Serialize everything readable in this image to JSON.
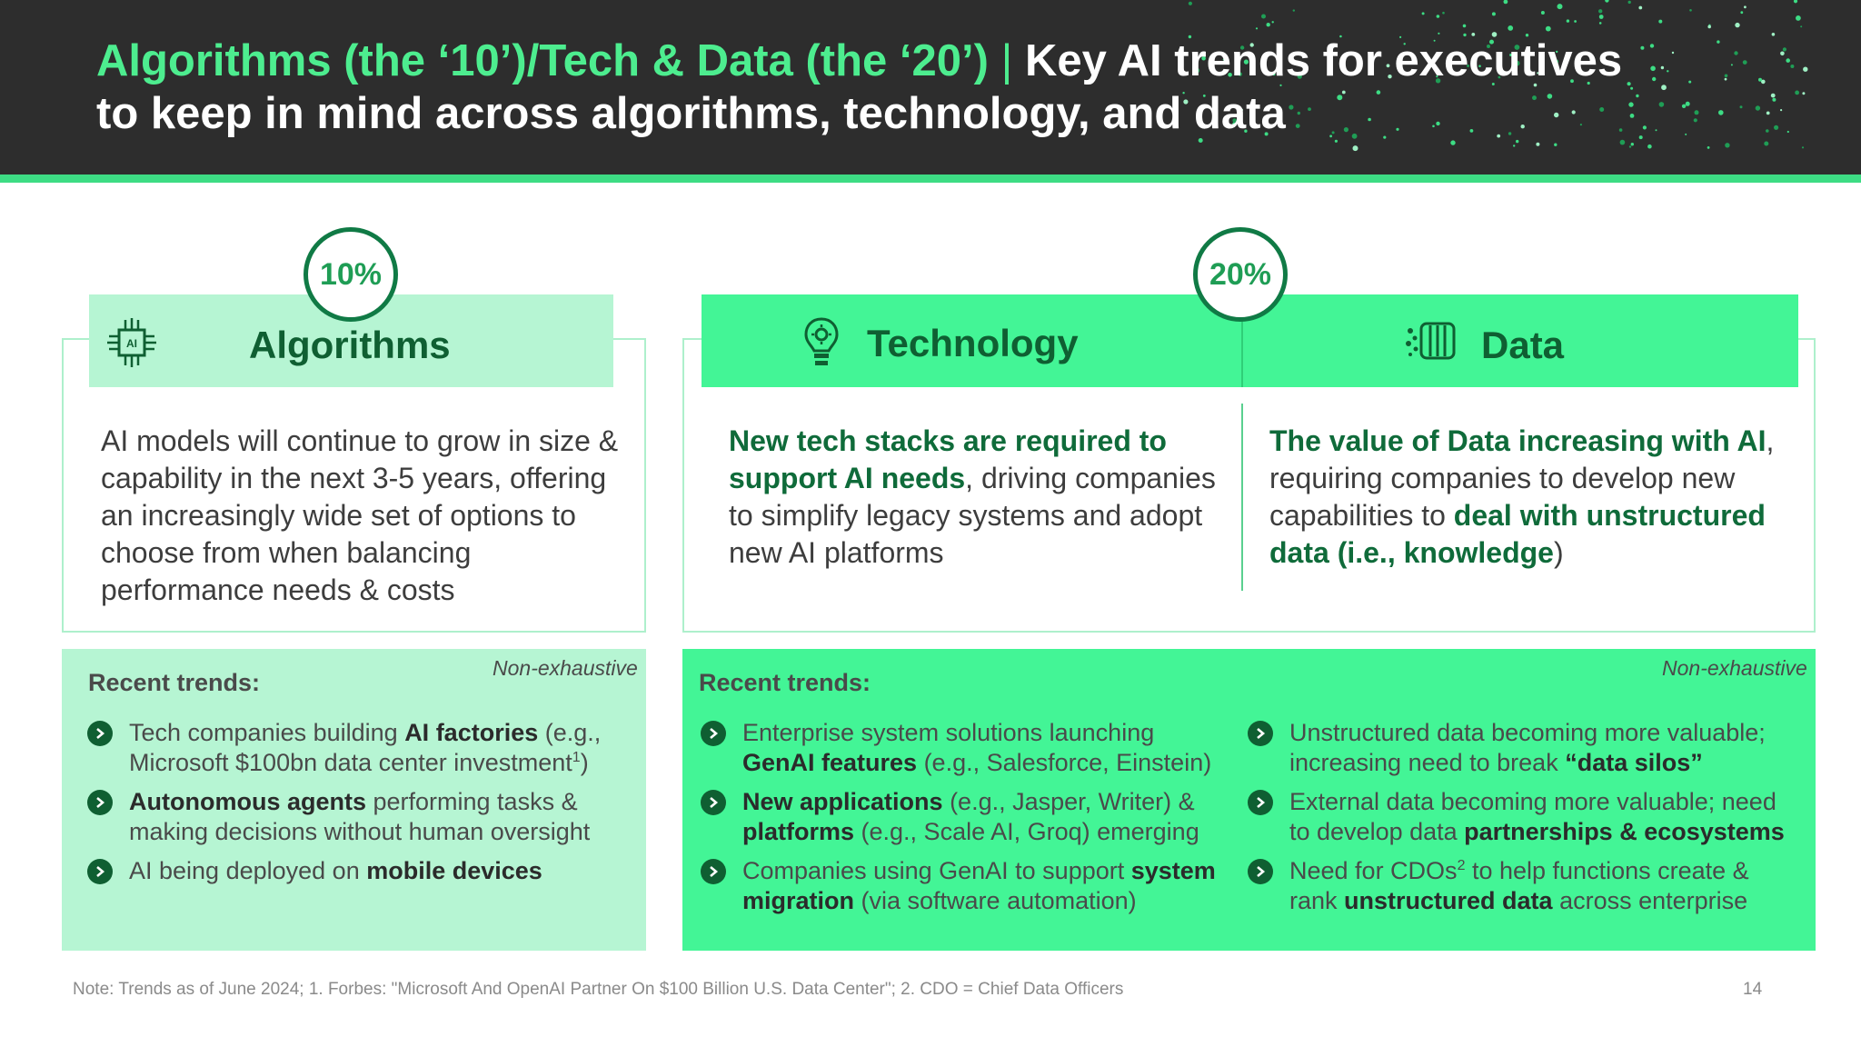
{
  "title": {
    "green_part": "Algorithms (the ‘10’)/Tech & Data (the ‘20’)",
    "separator": "|",
    "white_line1": "Key AI trends for executives",
    "white_line2": "to keep in mind across algorithms, technology, and data"
  },
  "badges": {
    "left": "10%",
    "right": "20%"
  },
  "algorithms": {
    "title": "Algorithms",
    "icon": "ai-chip-icon",
    "icon_text": "AI",
    "description": "AI models will continue to grow in size & capability in the next 3-5 years, offering an increasingly wide set of options to choose from when balancing performance needs & costs"
  },
  "technology": {
    "title": "Technology",
    "icon": "lightbulb-gear-icon",
    "desc_bold": "New tech stacks are required to support AI needs",
    "desc_rest": ", driving companies to simplify legacy systems and adopt new AI platforms"
  },
  "data": {
    "title": "Data",
    "icon": "data-stream-icon",
    "desc_bold1": "The value of Data increasing with AI",
    "desc_mid": ", requiring companies to develop new capabilities to ",
    "desc_bold2": "deal with unstructured data (i.e., knowledge",
    "desc_end": ")"
  },
  "trends_left": {
    "heading": "Recent trends:",
    "note": "Non-exhaustive",
    "items": [
      {
        "a": "Tech companies building ",
        "b": "AI factories",
        "c": " (e.g., Microsoft $100bn data center investment",
        "sup": "1",
        "d": ")"
      },
      {
        "a": "",
        "b": "Autonomous agents",
        "c": " performing tasks & making decisions without human oversight"
      },
      {
        "a": "AI being deployed on ",
        "b": "mobile devices",
        "c": ""
      }
    ]
  },
  "trends_right": {
    "heading": "Recent trends:",
    "note": "Non-exhaustive",
    "tech_items": [
      {
        "a": "Enterprise system solutions launching ",
        "b": "GenAI features",
        "c": " (e.g., Salesforce, Einstein)"
      },
      {
        "a": "",
        "b": "New applications",
        "c": " (e.g., Jasper, Writer) & ",
        "b2": "platforms",
        "c2": " (e.g., Scale AI, Groq) emerging"
      },
      {
        "a": "Companies using GenAI to support ",
        "b": "system migration",
        "c": " (via software automation)"
      }
    ],
    "data_items": [
      {
        "a": "Unstructured data becoming more valuable; increasing need to break ",
        "b": "“data silos”",
        "c": ""
      },
      {
        "a": "External data becoming more valuable; need to develop data ",
        "b": "partnerships & ecosystems",
        "c": ""
      },
      {
        "a": "Need for CDOs",
        "sup": "2",
        "a2": " to help functions create & rank ",
        "b": "unstructured data",
        "c": " across enterprise"
      }
    ]
  },
  "footnote": "Note: Trends as of June 2024; 1. Forbes: \"Microsoft And OpenAI Partner On $100 Billion U.S. Data Center\"; 2. CDO = Chief Data Officers",
  "page_number": "14",
  "colors": {
    "dark_header": "#2d2d2d",
    "accent_green": "#4ded8f",
    "light_mint": "#b6f5d3",
    "bright_green": "#43f596",
    "deep_green": "#0f5f32"
  }
}
